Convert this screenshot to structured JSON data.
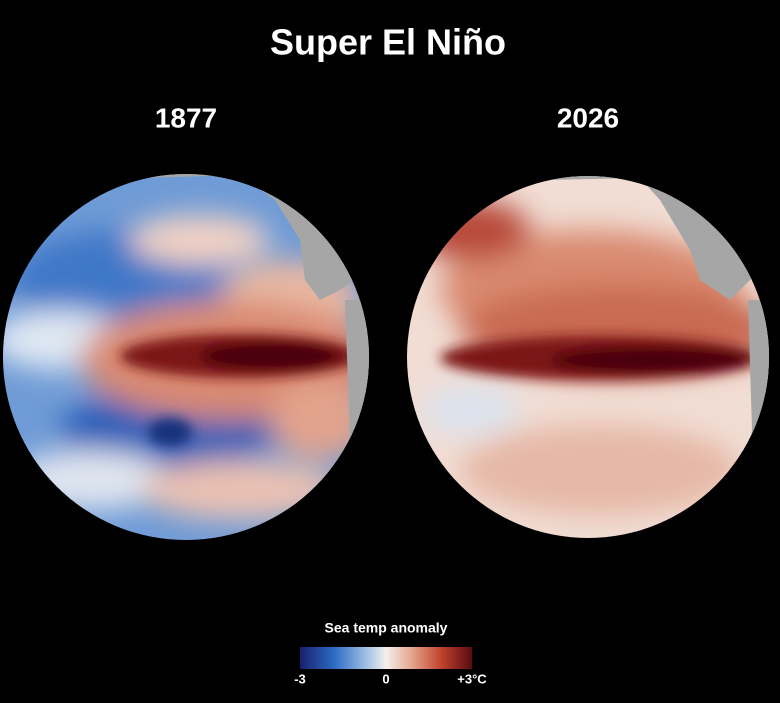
{
  "title": "Super El Niño",
  "globes": [
    {
      "label": "1877"
    },
    {
      "label": "2026"
    }
  ],
  "legend": {
    "title": "Sea temp anomaly",
    "range": [
      -3,
      3
    ],
    "ticks": [
      {
        "value": -3,
        "label": "-3"
      },
      {
        "value": 0,
        "label": "0"
      },
      {
        "value": 3,
        "label": "+3°C"
      }
    ]
  }
}
